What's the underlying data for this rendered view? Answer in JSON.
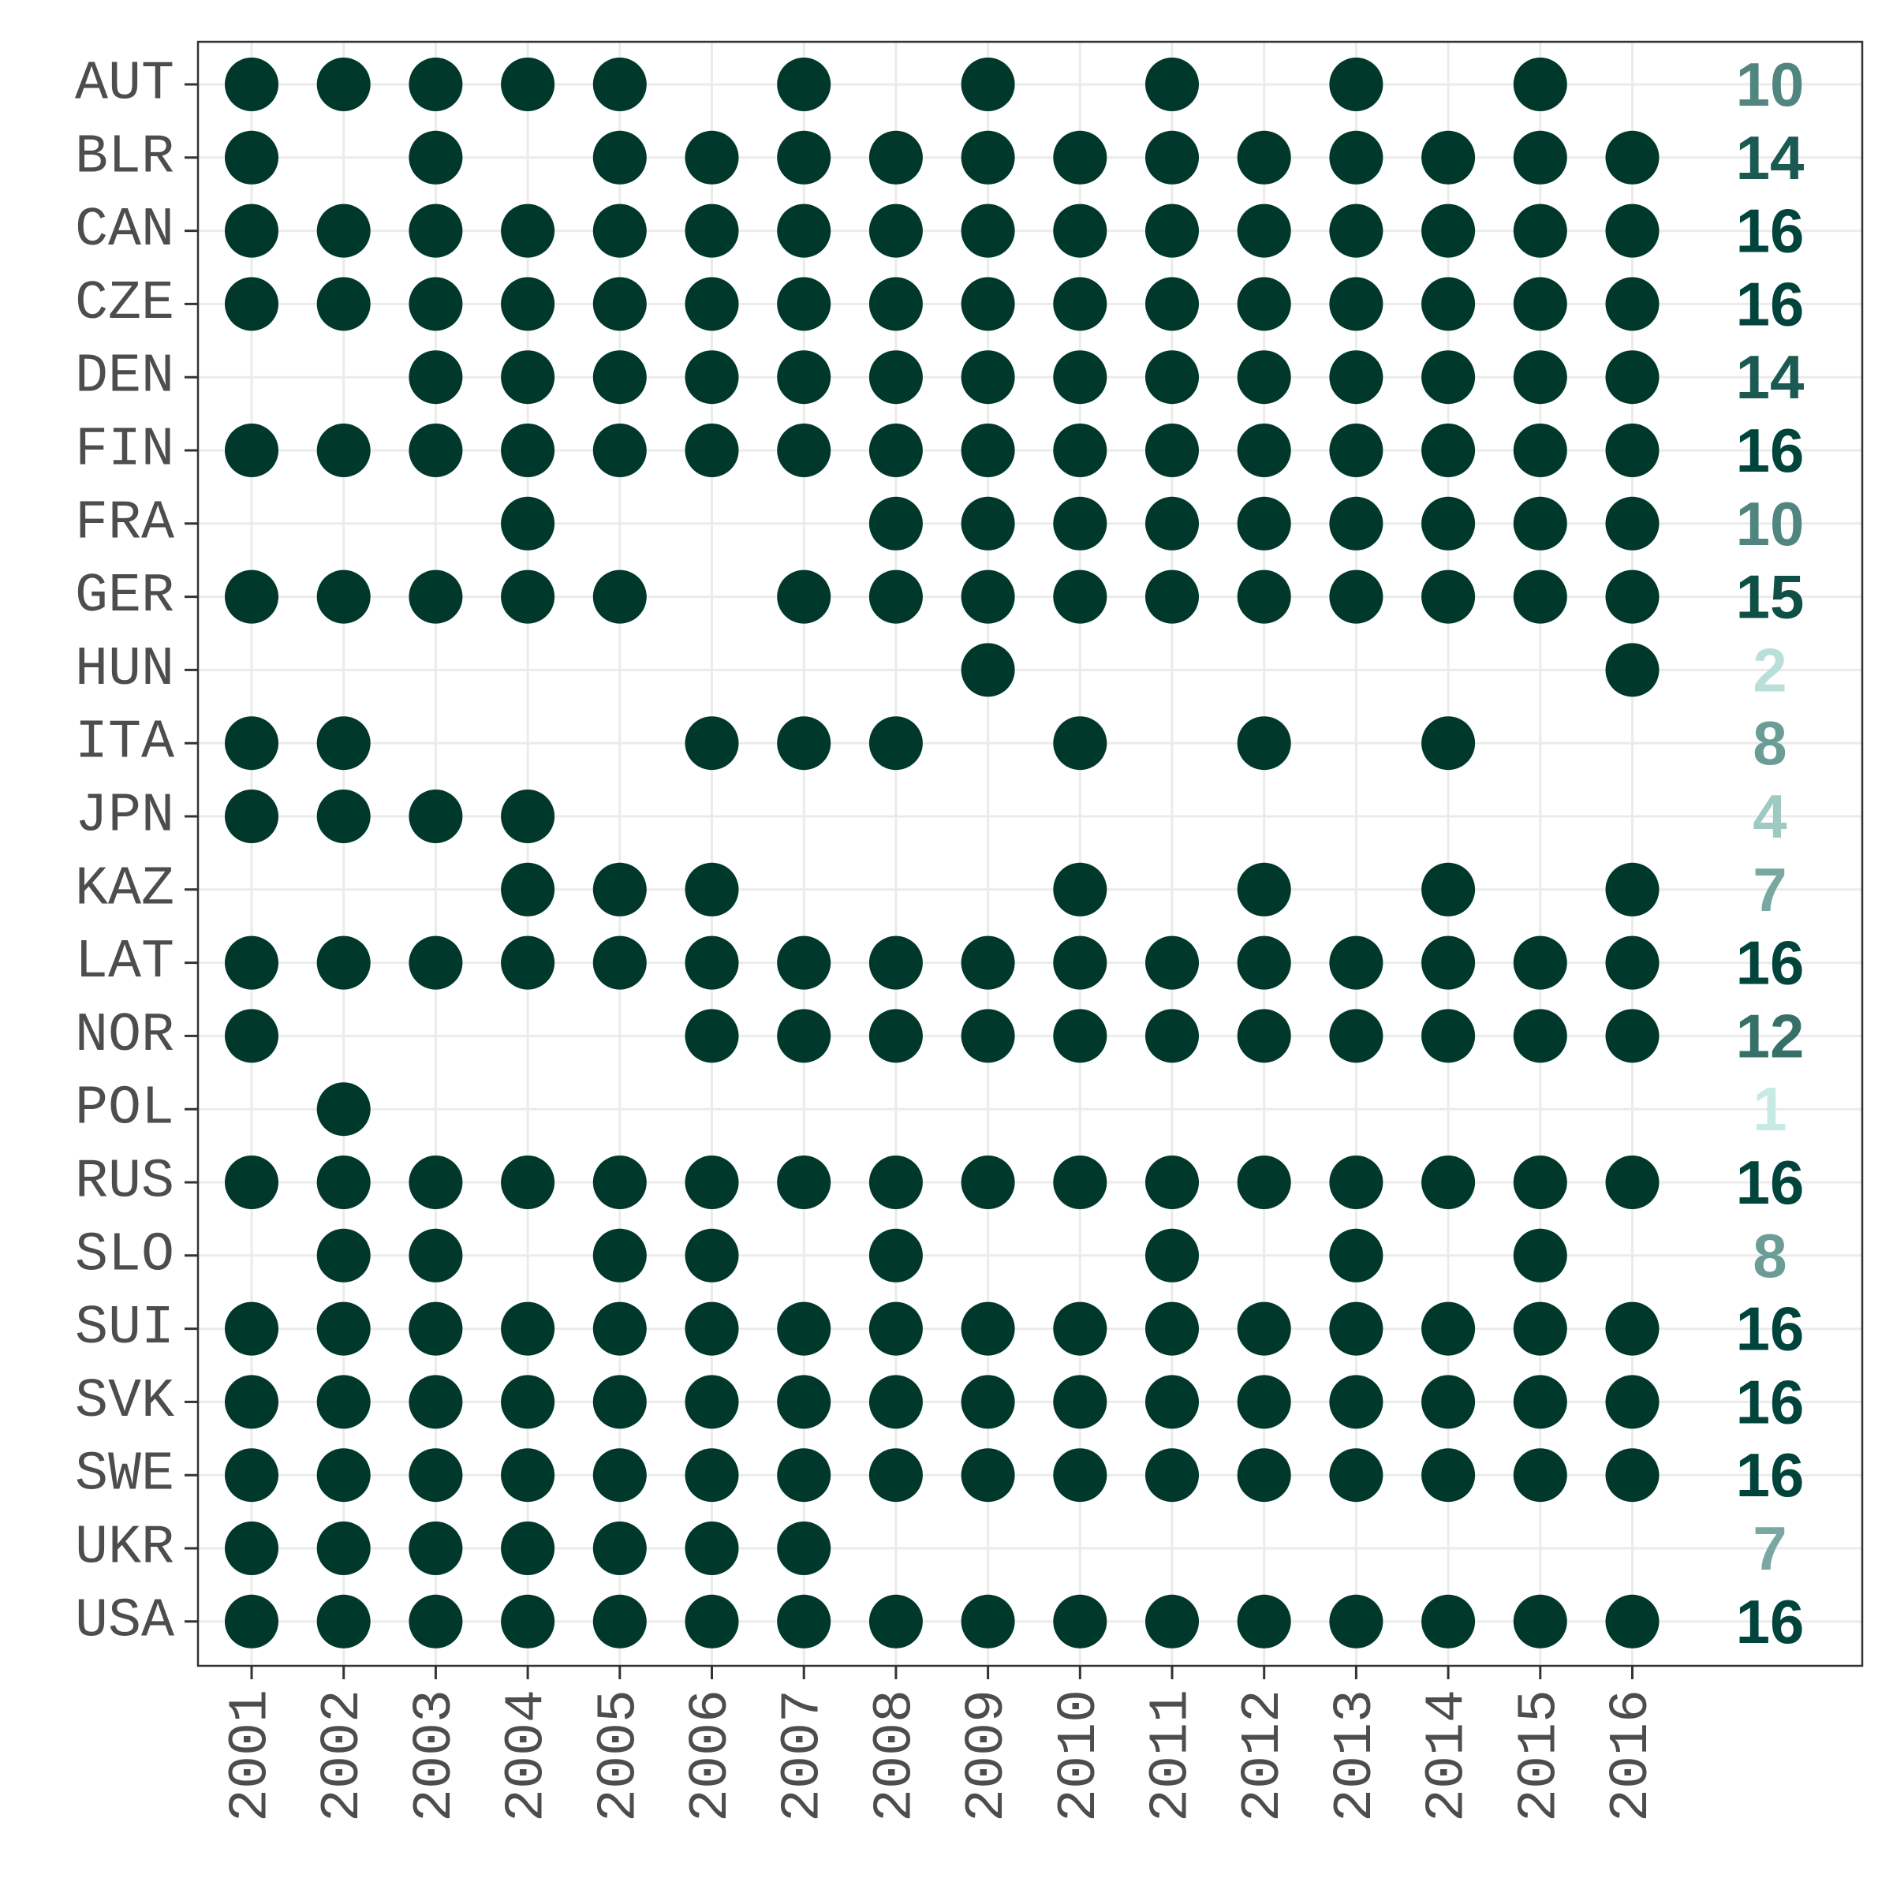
{
  "chart_data": {
    "type": "scatter",
    "title": "",
    "xlabel": "",
    "ylabel": "",
    "years": [
      "2001",
      "2002",
      "2003",
      "2004",
      "2005",
      "2006",
      "2007",
      "2008",
      "2009",
      "2010",
      "2011",
      "2012",
      "2013",
      "2014",
      "2015",
      "2016"
    ],
    "point_color": "#00382c",
    "count_color_scale": {
      "low": "#c7eae5",
      "high": "#01443b",
      "domain": [
        1,
        16
      ]
    },
    "grid": true,
    "rows": [
      {
        "country": "AUT",
        "count": "10",
        "years": [
          2001,
          2002,
          2003,
          2004,
          2005,
          2007,
          2009,
          2011,
          2013,
          2015
        ]
      },
      {
        "country": "BLR",
        "count": "14",
        "years": [
          2001,
          2003,
          2005,
          2006,
          2007,
          2008,
          2009,
          2010,
          2011,
          2012,
          2013,
          2014,
          2015,
          2016
        ]
      },
      {
        "country": "CAN",
        "count": "16",
        "years": [
          2001,
          2002,
          2003,
          2004,
          2005,
          2006,
          2007,
          2008,
          2009,
          2010,
          2011,
          2012,
          2013,
          2014,
          2015,
          2016
        ]
      },
      {
        "country": "CZE",
        "count": "16",
        "years": [
          2001,
          2002,
          2003,
          2004,
          2005,
          2006,
          2007,
          2008,
          2009,
          2010,
          2011,
          2012,
          2013,
          2014,
          2015,
          2016
        ]
      },
      {
        "country": "DEN",
        "count": "14",
        "years": [
          2003,
          2004,
          2005,
          2006,
          2007,
          2008,
          2009,
          2010,
          2011,
          2012,
          2013,
          2014,
          2015,
          2016
        ]
      },
      {
        "country": "FIN",
        "count": "16",
        "years": [
          2001,
          2002,
          2003,
          2004,
          2005,
          2006,
          2007,
          2008,
          2009,
          2010,
          2011,
          2012,
          2013,
          2014,
          2015,
          2016
        ]
      },
      {
        "country": "FRA",
        "count": "10",
        "years": [
          2004,
          2008,
          2009,
          2010,
          2011,
          2012,
          2013,
          2014,
          2015,
          2016
        ]
      },
      {
        "country": "GER",
        "count": "15",
        "years": [
          2001,
          2002,
          2003,
          2004,
          2005,
          2007,
          2008,
          2009,
          2010,
          2011,
          2012,
          2013,
          2014,
          2015,
          2016
        ]
      },
      {
        "country": "HUN",
        "count": "2",
        "years": [
          2009,
          2016
        ]
      },
      {
        "country": "ITA",
        "count": "8",
        "years": [
          2001,
          2002,
          2006,
          2007,
          2008,
          2010,
          2012,
          2014
        ]
      },
      {
        "country": "JPN",
        "count": "4",
        "years": [
          2001,
          2002,
          2003,
          2004
        ]
      },
      {
        "country": "KAZ",
        "count": "7",
        "years": [
          2004,
          2005,
          2006,
          2010,
          2012,
          2014,
          2016
        ]
      },
      {
        "country": "LAT",
        "count": "16",
        "years": [
          2001,
          2002,
          2003,
          2004,
          2005,
          2006,
          2007,
          2008,
          2009,
          2010,
          2011,
          2012,
          2013,
          2014,
          2015,
          2016
        ]
      },
      {
        "country": "NOR",
        "count": "12",
        "years": [
          2001,
          2006,
          2007,
          2008,
          2009,
          2010,
          2011,
          2012,
          2013,
          2014,
          2015,
          2016
        ]
      },
      {
        "country": "POL",
        "count": "1",
        "years": [
          2002
        ]
      },
      {
        "country": "RUS",
        "count": "16",
        "years": [
          2001,
          2002,
          2003,
          2004,
          2005,
          2006,
          2007,
          2008,
          2009,
          2010,
          2011,
          2012,
          2013,
          2014,
          2015,
          2016
        ]
      },
      {
        "country": "SLO",
        "count": "8",
        "years": [
          2002,
          2003,
          2005,
          2006,
          2008,
          2011,
          2013,
          2015
        ]
      },
      {
        "country": "SUI",
        "count": "16",
        "years": [
          2001,
          2002,
          2003,
          2004,
          2005,
          2006,
          2007,
          2008,
          2009,
          2010,
          2011,
          2012,
          2013,
          2014,
          2015,
          2016
        ]
      },
      {
        "country": "SVK",
        "count": "16",
        "years": [
          2001,
          2002,
          2003,
          2004,
          2005,
          2006,
          2007,
          2008,
          2009,
          2010,
          2011,
          2012,
          2013,
          2014,
          2015,
          2016
        ]
      },
      {
        "country": "SWE",
        "count": "16",
        "years": [
          2001,
          2002,
          2003,
          2004,
          2005,
          2006,
          2007,
          2008,
          2009,
          2010,
          2011,
          2012,
          2013,
          2014,
          2015,
          2016
        ]
      },
      {
        "country": "UKR",
        "count": "7",
        "years": [
          2001,
          2002,
          2003,
          2004,
          2005,
          2006,
          2007
        ]
      },
      {
        "country": "USA",
        "count": "16",
        "years": [
          2001,
          2002,
          2003,
          2004,
          2005,
          2006,
          2007,
          2008,
          2009,
          2010,
          2011,
          2012,
          2013,
          2014,
          2015,
          2016
        ]
      }
    ]
  }
}
